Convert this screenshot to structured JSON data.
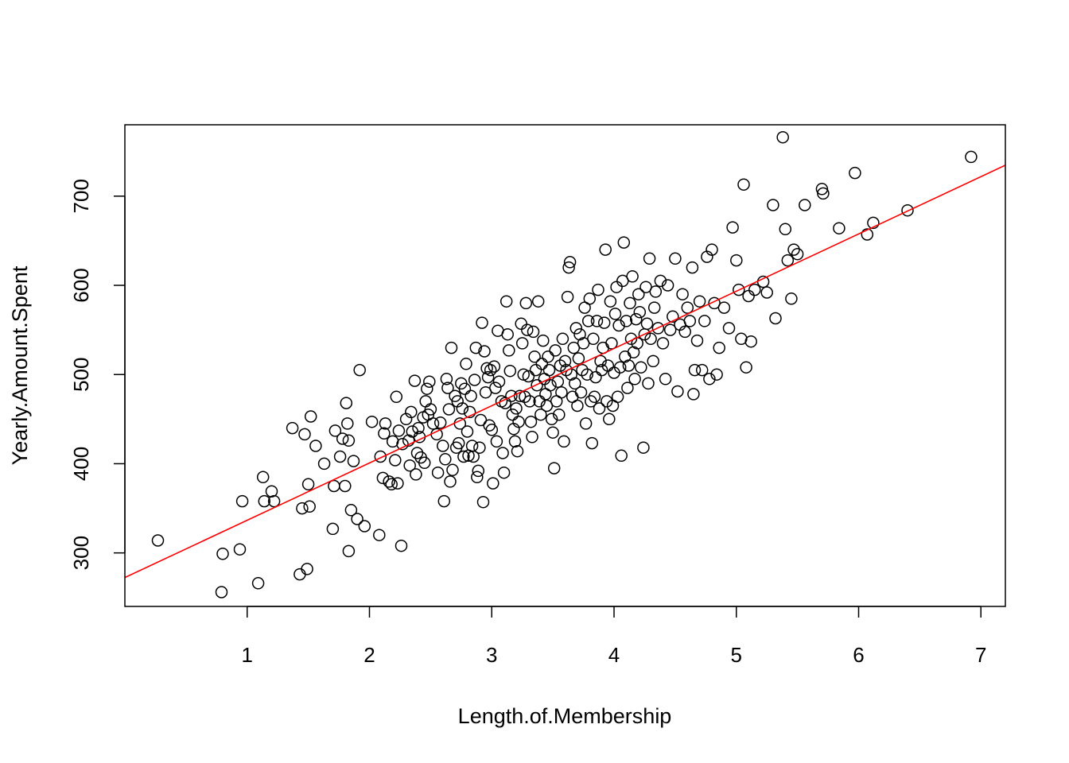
{
  "chart_data": {
    "type": "scatter",
    "title": "",
    "xlabel": "Length.of.Membership",
    "ylabel": "Yearly.Amount.Spent",
    "xlim": [
      0.0,
      7.2
    ],
    "ylim": [
      240,
      780
    ],
    "x_ticks": [
      1,
      2,
      3,
      4,
      5,
      6,
      7
    ],
    "x_tick_labels": [
      "1",
      "2",
      "3",
      "4",
      "5",
      "6",
      "7"
    ],
    "y_ticks": [
      300,
      400,
      500,
      600,
      700
    ],
    "y_tick_labels": [
      "300",
      "400",
      "500",
      "600",
      "700"
    ],
    "grid": false,
    "point_style": "open-circle",
    "point_color": "#000000",
    "regression_line": {
      "intercept": 272.4,
      "slope": 64.2,
      "color": "#ff0000"
    },
    "points": [
      [
        0.27,
        314
      ],
      [
        0.79,
        256
      ],
      [
        0.8,
        299
      ],
      [
        0.94,
        304
      ],
      [
        0.96,
        358
      ],
      [
        1.09,
        266
      ],
      [
        1.13,
        385
      ],
      [
        1.14,
        358
      ],
      [
        1.2,
        369
      ],
      [
        1.22,
        358
      ],
      [
        1.37,
        440
      ],
      [
        1.43,
        276
      ],
      [
        1.45,
        350
      ],
      [
        1.47,
        433
      ],
      [
        1.49,
        282
      ],
      [
        1.5,
        377
      ],
      [
        1.51,
        352
      ],
      [
        1.52,
        453
      ],
      [
        1.56,
        420
      ],
      [
        1.63,
        400
      ],
      [
        1.7,
        327
      ],
      [
        1.71,
        375
      ],
      [
        1.72,
        437
      ],
      [
        1.76,
        408
      ],
      [
        1.78,
        428
      ],
      [
        1.8,
        375
      ],
      [
        1.81,
        468
      ],
      [
        1.82,
        445
      ],
      [
        1.83,
        426
      ],
      [
        1.83,
        302
      ],
      [
        1.85,
        348
      ],
      [
        1.87,
        403
      ],
      [
        1.9,
        338
      ],
      [
        1.92,
        505
      ],
      [
        1.96,
        330
      ],
      [
        2.02,
        447
      ],
      [
        2.08,
        320
      ],
      [
        2.09,
        408
      ],
      [
        2.11,
        384
      ],
      [
        2.12,
        434
      ],
      [
        2.13,
        445
      ],
      [
        2.16,
        380
      ],
      [
        2.18,
        377
      ],
      [
        2.19,
        425
      ],
      [
        2.21,
        404
      ],
      [
        2.22,
        475
      ],
      [
        2.23,
        378
      ],
      [
        2.24,
        437
      ],
      [
        2.26,
        308
      ],
      [
        2.27,
        422
      ],
      [
        2.3,
        450
      ],
      [
        2.32,
        426
      ],
      [
        2.33,
        398
      ],
      [
        2.34,
        458
      ],
      [
        2.35,
        436
      ],
      [
        2.37,
        493
      ],
      [
        2.38,
        388
      ],
      [
        2.39,
        412
      ],
      [
        2.4,
        440
      ],
      [
        2.41,
        430
      ],
      [
        2.42,
        407
      ],
      [
        2.44,
        452
      ],
      [
        2.45,
        401
      ],
      [
        2.46,
        470
      ],
      [
        2.47,
        484
      ],
      [
        2.48,
        455
      ],
      [
        2.49,
        492
      ],
      [
        2.5,
        461
      ],
      [
        2.52,
        445
      ],
      [
        2.55,
        433
      ],
      [
        2.56,
        390
      ],
      [
        2.58,
        446
      ],
      [
        2.6,
        420
      ],
      [
        2.61,
        358
      ],
      [
        2.62,
        405
      ],
      [
        2.63,
        495
      ],
      [
        2.64,
        485
      ],
      [
        2.65,
        461
      ],
      [
        2.66,
        380
      ],
      [
        2.67,
        530
      ],
      [
        2.68,
        393
      ],
      [
        2.7,
        476
      ],
      [
        2.71,
        418
      ],
      [
        2.72,
        470
      ],
      [
        2.73,
        423
      ],
      [
        2.74,
        445
      ],
      [
        2.75,
        490
      ],
      [
        2.76,
        462
      ],
      [
        2.77,
        408
      ],
      [
        2.78,
        484
      ],
      [
        2.79,
        512
      ],
      [
        2.8,
        436
      ],
      [
        2.81,
        409
      ],
      [
        2.82,
        458
      ],
      [
        2.83,
        476
      ],
      [
        2.84,
        420
      ],
      [
        2.85,
        408
      ],
      [
        2.86,
        494
      ],
      [
        2.87,
        530
      ],
      [
        2.88,
        385
      ],
      [
        2.89,
        392
      ],
      [
        2.9,
        418
      ],
      [
        2.91,
        449
      ],
      [
        2.92,
        558
      ],
      [
        2.93,
        357
      ],
      [
        2.94,
        526
      ],
      [
        2.95,
        480
      ],
      [
        2.96,
        507
      ],
      [
        2.97,
        497
      ],
      [
        2.98,
        443
      ],
      [
        2.99,
        505
      ],
      [
        3.0,
        438
      ],
      [
        3.01,
        378
      ],
      [
        3.02,
        509
      ],
      [
        3.03,
        485
      ],
      [
        3.04,
        425
      ],
      [
        3.05,
        549
      ],
      [
        3.06,
        492
      ],
      [
        3.08,
        470
      ],
      [
        3.09,
        412
      ],
      [
        3.1,
        390
      ],
      [
        3.11,
        468
      ],
      [
        3.12,
        582
      ],
      [
        3.13,
        545
      ],
      [
        3.14,
        527
      ],
      [
        3.15,
        504
      ],
      [
        3.16,
        476
      ],
      [
        3.17,
        455
      ],
      [
        3.18,
        439
      ],
      [
        3.19,
        425
      ],
      [
        3.2,
        462
      ],
      [
        3.21,
        414
      ],
      [
        3.22,
        447
      ],
      [
        3.23,
        476
      ],
      [
        3.24,
        557
      ],
      [
        3.25,
        535
      ],
      [
        3.26,
        500
      ],
      [
        3.27,
        475
      ],
      [
        3.28,
        580
      ],
      [
        3.29,
        550
      ],
      [
        3.3,
        498
      ],
      [
        3.31,
        470
      ],
      [
        3.32,
        447
      ],
      [
        3.33,
        430
      ],
      [
        3.34,
        548
      ],
      [
        3.35,
        520
      ],
      [
        3.36,
        505
      ],
      [
        3.37,
        488
      ],
      [
        3.38,
        582
      ],
      [
        3.39,
        470
      ],
      [
        3.4,
        455
      ],
      [
        3.41,
        512
      ],
      [
        3.42,
        538
      ],
      [
        3.43,
        495
      ],
      [
        3.44,
        478
      ],
      [
        3.45,
        465
      ],
      [
        3.46,
        520
      ],
      [
        3.47,
        505
      ],
      [
        3.48,
        488
      ],
      [
        3.49,
        450
      ],
      [
        3.5,
        435
      ],
      [
        3.51,
        395
      ],
      [
        3.52,
        527
      ],
      [
        3.53,
        470
      ],
      [
        3.54,
        492
      ],
      [
        3.55,
        455
      ],
      [
        3.56,
        510
      ],
      [
        3.57,
        480
      ],
      [
        3.58,
        540
      ],
      [
        3.59,
        425
      ],
      [
        3.6,
        515
      ],
      [
        3.61,
        505
      ],
      [
        3.62,
        587
      ],
      [
        3.63,
        620
      ],
      [
        3.64,
        626
      ],
      [
        3.65,
        500
      ],
      [
        3.66,
        475
      ],
      [
        3.67,
        530
      ],
      [
        3.68,
        490
      ],
      [
        3.69,
        552
      ],
      [
        3.7,
        465
      ],
      [
        3.71,
        518
      ],
      [
        3.72,
        545
      ],
      [
        3.73,
        480
      ],
      [
        3.74,
        505
      ],
      [
        3.75,
        535
      ],
      [
        3.76,
        575
      ],
      [
        3.77,
        445
      ],
      [
        3.78,
        500
      ],
      [
        3.79,
        560
      ],
      [
        3.8,
        585
      ],
      [
        3.81,
        470
      ],
      [
        3.82,
        423
      ],
      [
        3.83,
        540
      ],
      [
        3.84,
        475
      ],
      [
        3.85,
        497
      ],
      [
        3.86,
        560
      ],
      [
        3.87,
        595
      ],
      [
        3.88,
        462
      ],
      [
        3.89,
        515
      ],
      [
        3.9,
        505
      ],
      [
        3.91,
        530
      ],
      [
        3.92,
        558
      ],
      [
        3.93,
        640
      ],
      [
        3.94,
        470
      ],
      [
        3.95,
        510
      ],
      [
        3.96,
        450
      ],
      [
        3.97,
        582
      ],
      [
        3.98,
        535
      ],
      [
        3.99,
        465
      ],
      [
        4.0,
        502
      ],
      [
        4.01,
        568
      ],
      [
        4.02,
        598
      ],
      [
        4.03,
        475
      ],
      [
        4.04,
        555
      ],
      [
        4.05,
        508
      ],
      [
        4.06,
        409
      ],
      [
        4.07,
        605
      ],
      [
        4.08,
        648
      ],
      [
        4.09,
        520
      ],
      [
        4.1,
        560
      ],
      [
        4.11,
        485
      ],
      [
        4.12,
        510
      ],
      [
        4.13,
        580
      ],
      [
        4.14,
        540
      ],
      [
        4.15,
        610
      ],
      [
        4.16,
        525
      ],
      [
        4.17,
        495
      ],
      [
        4.18,
        562
      ],
      [
        4.19,
        535
      ],
      [
        4.2,
        590
      ],
      [
        4.21,
        570
      ],
      [
        4.22,
        508
      ],
      [
        4.24,
        418
      ],
      [
        4.25,
        545
      ],
      [
        4.26,
        598
      ],
      [
        4.27,
        557
      ],
      [
        4.28,
        490
      ],
      [
        4.29,
        630
      ],
      [
        4.3,
        540
      ],
      [
        4.32,
        515
      ],
      [
        4.33,
        575
      ],
      [
        4.34,
        593
      ],
      [
        4.36,
        552
      ],
      [
        4.38,
        605
      ],
      [
        4.4,
        535
      ],
      [
        4.42,
        495
      ],
      [
        4.44,
        600
      ],
      [
        4.46,
        550
      ],
      [
        4.48,
        565
      ],
      [
        4.5,
        630
      ],
      [
        4.52,
        481
      ],
      [
        4.54,
        556
      ],
      [
        4.56,
        590
      ],
      [
        4.58,
        548
      ],
      [
        4.6,
        575
      ],
      [
        4.62,
        560
      ],
      [
        4.64,
        620
      ],
      [
        4.65,
        478
      ],
      [
        4.66,
        505
      ],
      [
        4.68,
        538
      ],
      [
        4.7,
        582
      ],
      [
        4.72,
        505
      ],
      [
        4.74,
        560
      ],
      [
        4.76,
        632
      ],
      [
        4.78,
        495
      ],
      [
        4.8,
        640
      ],
      [
        4.82,
        580
      ],
      [
        4.84,
        500
      ],
      [
        4.86,
        530
      ],
      [
        4.9,
        575
      ],
      [
        4.94,
        552
      ],
      [
        4.97,
        665
      ],
      [
        5.0,
        628
      ],
      [
        5.02,
        595
      ],
      [
        5.04,
        540
      ],
      [
        5.06,
        713
      ],
      [
        5.08,
        508
      ],
      [
        5.1,
        588
      ],
      [
        5.12,
        537
      ],
      [
        5.15,
        595
      ],
      [
        5.22,
        604
      ],
      [
        5.25,
        592
      ],
      [
        5.3,
        690
      ],
      [
        5.32,
        563
      ],
      [
        5.38,
        766
      ],
      [
        5.4,
        663
      ],
      [
        5.42,
        628
      ],
      [
        5.45,
        585
      ],
      [
        5.47,
        640
      ],
      [
        5.5,
        635
      ],
      [
        5.56,
        690
      ],
      [
        5.7,
        708
      ],
      [
        5.71,
        703
      ],
      [
        5.84,
        664
      ],
      [
        5.97,
        726
      ],
      [
        6.07,
        657
      ],
      [
        6.12,
        670
      ],
      [
        6.4,
        684
      ],
      [
        6.92,
        744
      ]
    ]
  }
}
